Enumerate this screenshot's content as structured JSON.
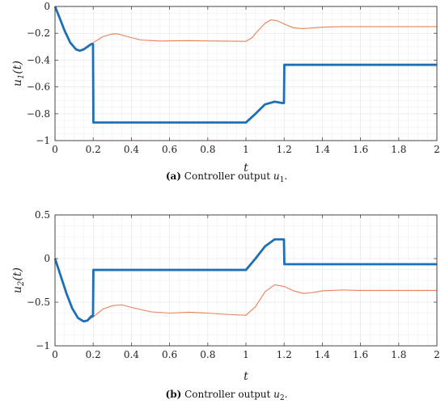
{
  "colors": {
    "thick": "#1f6fb5",
    "thin": "#e8825a"
  },
  "chart_data": [
    {
      "type": "line",
      "ylabel": "u1(t)",
      "ylabel_main": "u",
      "ylabel_sub": "1",
      "ylabel_arg": "(t)",
      "xlabel": "t",
      "xlim": [
        0,
        2
      ],
      "ylim": [
        -1,
        0
      ],
      "xticks": [
        0,
        0.2,
        0.4,
        0.6,
        0.8,
        1,
        1.2,
        1.4,
        1.6,
        1.8,
        2
      ],
      "xtick_labels": [
        "0",
        "0.2",
        "0.4",
        "0.6",
        "0.8",
        "1",
        "1.2",
        "1.4",
        "1.6",
        "1.8",
        "2"
      ],
      "yticks": [
        -1,
        -0.8,
        -0.6,
        -0.4,
        -0.2,
        0
      ],
      "ytick_labels": [
        "−1",
        "−0.8",
        "−0.6",
        "−0.4",
        "−0.2",
        "0"
      ],
      "grid": true,
      "caption_letter": "(a)",
      "caption_text": " Controller output ",
      "caption_var": "u",
      "caption_sub": "1",
      "caption_end": ".",
      "series": [
        {
          "style": "thick",
          "x": [
            0,
            0.02,
            0.05,
            0.08,
            0.11,
            0.13,
            0.15,
            0.17,
            0.19,
            0.199,
            0.201,
            0.5,
            0.999,
            1.0,
            1.05,
            1.1,
            1.15,
            1.19,
            1.199,
            1.201,
            1.5,
            2.0
          ],
          "y": [
            0,
            -0.07,
            -0.18,
            -0.27,
            -0.32,
            -0.33,
            -0.32,
            -0.3,
            -0.28,
            -0.28,
            -0.865,
            -0.865,
            -0.865,
            -0.865,
            -0.8,
            -0.73,
            -0.71,
            -0.72,
            -0.72,
            -0.435,
            -0.435,
            -0.435
          ]
        },
        {
          "style": "thin",
          "x": [
            0,
            0.02,
            0.05,
            0.08,
            0.11,
            0.13,
            0.15,
            0.17,
            0.2,
            0.25,
            0.3,
            0.33,
            0.38,
            0.45,
            0.55,
            0.7,
            0.85,
            1.0,
            1.03,
            1.06,
            1.1,
            1.13,
            1.16,
            1.2,
            1.25,
            1.3,
            1.4,
            1.5,
            1.6,
            1.8,
            2.0
          ],
          "y": [
            0,
            -0.07,
            -0.18,
            -0.27,
            -0.32,
            -0.33,
            -0.32,
            -0.3,
            -0.27,
            -0.225,
            -0.205,
            -0.205,
            -0.225,
            -0.25,
            -0.258,
            -0.255,
            -0.258,
            -0.26,
            -0.235,
            -0.185,
            -0.125,
            -0.1,
            -0.105,
            -0.13,
            -0.16,
            -0.165,
            -0.155,
            -0.15,
            -0.15,
            -0.15,
            -0.15
          ]
        }
      ]
    },
    {
      "type": "line",
      "ylabel": "u2(t)",
      "ylabel_main": "u",
      "ylabel_sub": "2",
      "ylabel_arg": "(t)",
      "xlabel": "t",
      "xlim": [
        0,
        2
      ],
      "ylim": [
        -1,
        0.5
      ],
      "xticks": [
        0,
        0.2,
        0.4,
        0.6,
        0.8,
        1,
        1.2,
        1.4,
        1.6,
        1.8,
        2
      ],
      "xtick_labels": [
        "0",
        "0.2",
        "0.4",
        "0.6",
        "0.8",
        "1",
        "1.2",
        "1.4",
        "1.6",
        "1.8",
        "2"
      ],
      "yticks": [
        -1,
        -0.5,
        0,
        0.5
      ],
      "ytick_labels": [
        "−1",
        "−0.5",
        "0",
        "0.5"
      ],
      "grid": true,
      "caption_letter": "(b)",
      "caption_text": " Controller output ",
      "caption_var": "u",
      "caption_sub": "2",
      "caption_end": ".",
      "series": [
        {
          "style": "thick",
          "x": [
            0,
            0.03,
            0.06,
            0.09,
            0.12,
            0.15,
            0.17,
            0.19,
            0.199,
            0.201,
            0.6,
            0.999,
            1.0,
            1.05,
            1.1,
            1.15,
            1.19,
            1.199,
            1.201,
            1.5,
            2.0
          ],
          "y": [
            0,
            -0.2,
            -0.4,
            -0.57,
            -0.68,
            -0.72,
            -0.71,
            -0.66,
            -0.66,
            -0.13,
            -0.13,
            -0.13,
            -0.13,
            0.0,
            0.14,
            0.22,
            0.22,
            0.22,
            -0.065,
            -0.065,
            -0.065
          ],
          "vertex_note": ""
        },
        {
          "style": "thin",
          "x": [
            0,
            0.03,
            0.06,
            0.09,
            0.12,
            0.15,
            0.17,
            0.2,
            0.25,
            0.3,
            0.35,
            0.4,
            0.5,
            0.6,
            0.7,
            0.8,
            0.9,
            1.0,
            1.05,
            1.1,
            1.15,
            1.2,
            1.25,
            1.3,
            1.35,
            1.4,
            1.5,
            1.6,
            1.8,
            2.0
          ],
          "y": [
            0,
            -0.2,
            -0.4,
            -0.57,
            -0.68,
            -0.72,
            -0.71,
            -0.67,
            -0.58,
            -0.54,
            -0.53,
            -0.56,
            -0.61,
            -0.625,
            -0.615,
            -0.625,
            -0.64,
            -0.65,
            -0.55,
            -0.38,
            -0.3,
            -0.32,
            -0.37,
            -0.4,
            -0.39,
            -0.37,
            -0.36,
            -0.365,
            -0.365,
            -0.365
          ]
        }
      ]
    }
  ]
}
